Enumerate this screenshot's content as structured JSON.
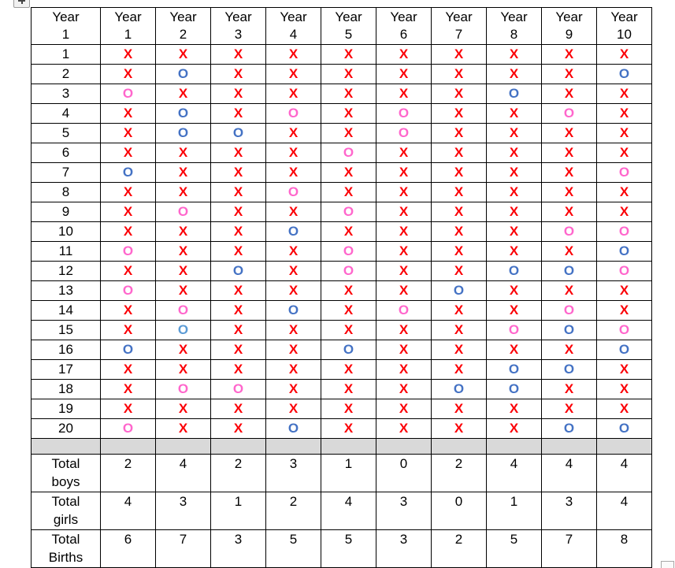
{
  "colors": {
    "mark_red": "#fb0007",
    "boy_blue": "#4472c4",
    "boy_light_blue": "#5b9bd5",
    "girl_pink": "#ff66cc",
    "divider_gray": "#d9d9d9",
    "border_black": "#000000"
  },
  "marks": {
    "X": {
      "glyph": "X",
      "color": "#fb0007"
    },
    "B": {
      "glyph": "O",
      "color": "#4472c4"
    },
    "L": {
      "glyph": "O",
      "color": "#5b9bd5"
    },
    "G": {
      "glyph": "O",
      "color": "#ff66cc"
    }
  },
  "header": {
    "corner": {
      "line1": "Year",
      "line2": "1"
    },
    "years": [
      {
        "line1": "Year",
        "line2": "1"
      },
      {
        "line1": "Year",
        "line2": "2"
      },
      {
        "line1": "Year",
        "line2": "3"
      },
      {
        "line1": "Year",
        "line2": "4"
      },
      {
        "line1": "Year",
        "line2": "5"
      },
      {
        "line1": "Year",
        "line2": "6"
      },
      {
        "line1": "Year",
        "line2": "7"
      },
      {
        "line1": "Year",
        "line2": "8"
      },
      {
        "line1": "Year",
        "line2": "9"
      },
      {
        "line1": "Year",
        "line2": "10"
      }
    ]
  },
  "rows": [
    {
      "label": "1",
      "cells": [
        "X",
        "X",
        "X",
        "X",
        "X",
        "X",
        "X",
        "X",
        "X",
        "X"
      ]
    },
    {
      "label": "2",
      "cells": [
        "X",
        "B",
        "X",
        "X",
        "X",
        "X",
        "X",
        "X",
        "X",
        "B"
      ]
    },
    {
      "label": "3",
      "cells": [
        "G",
        "X",
        "X",
        "X",
        "X",
        "X",
        "X",
        "B",
        "X",
        "X"
      ]
    },
    {
      "label": "4",
      "cells": [
        "X",
        "B",
        "X",
        "G",
        "X",
        "G",
        "X",
        "X",
        "G",
        "X"
      ]
    },
    {
      "label": "5",
      "cells": [
        "X",
        "B",
        "B",
        "X",
        "X",
        "G",
        "X",
        "X",
        "X",
        "X"
      ]
    },
    {
      "label": "6",
      "cells": [
        "X",
        "X",
        "X",
        "X",
        "G",
        "X",
        "X",
        "X",
        "X",
        "X"
      ]
    },
    {
      "label": "7",
      "cells": [
        "B",
        "X",
        "X",
        "X",
        "X",
        "X",
        "X",
        "X",
        "X",
        "G"
      ]
    },
    {
      "label": "8",
      "cells": [
        "X",
        "X",
        "X",
        "G",
        "X",
        "X",
        "X",
        "X",
        "X",
        "X"
      ]
    },
    {
      "label": "9",
      "cells": [
        "X",
        "G",
        "X",
        "X",
        "G",
        "X",
        "X",
        "X",
        "X",
        "X"
      ]
    },
    {
      "label": "10",
      "cells": [
        "X",
        "X",
        "X",
        "B",
        "X",
        "X",
        "X",
        "X",
        "G",
        "G"
      ]
    },
    {
      "label": "11",
      "cells": [
        "G",
        "X",
        "X",
        "X",
        "G",
        "X",
        "X",
        "X",
        "X",
        "B"
      ]
    },
    {
      "label": "12",
      "cells": [
        "X",
        "X",
        "B",
        "X",
        "G",
        "X",
        "X",
        "B",
        "B",
        "G"
      ]
    },
    {
      "label": "13",
      "cells": [
        "G",
        "X",
        "X",
        "X",
        "X",
        "X",
        "B",
        "X",
        "X",
        "X"
      ]
    },
    {
      "label": "14",
      "cells": [
        "X",
        "G",
        "X",
        "B",
        "X",
        "G",
        "X",
        "X",
        "G",
        "X"
      ]
    },
    {
      "label": "15",
      "cells": [
        "X",
        "L",
        "X",
        "X",
        "X",
        "X",
        "X",
        "G",
        "B",
        "G"
      ]
    },
    {
      "label": "16",
      "cells": [
        "B",
        "X",
        "X",
        "X",
        "B",
        "X",
        "X",
        "X",
        "X",
        "B"
      ]
    },
    {
      "label": "17",
      "cells": [
        "X",
        "X",
        "X",
        "X",
        "X",
        "X",
        "X",
        "B",
        "B",
        "X"
      ]
    },
    {
      "label": "18",
      "cells": [
        "X",
        "G",
        "G",
        "X",
        "X",
        "X",
        "B",
        "B",
        "X",
        "X"
      ]
    },
    {
      "label": "19",
      "cells": [
        "X",
        "X",
        "X",
        "X",
        "X",
        "X",
        "X",
        "X",
        "X",
        "X"
      ]
    },
    {
      "label": "20",
      "cells": [
        "G",
        "X",
        "X",
        "B",
        "X",
        "X",
        "X",
        "X",
        "B",
        "B"
      ]
    }
  ],
  "totals": [
    {
      "label_line1": "Total",
      "label_line2": "boys",
      "values": [
        2,
        4,
        2,
        3,
        1,
        0,
        2,
        4,
        4,
        4
      ]
    },
    {
      "label_line1": "Total",
      "label_line2": "girls",
      "values": [
        4,
        3,
        1,
        2,
        4,
        3,
        0,
        1,
        3,
        4
      ]
    },
    {
      "label_line1": "Total",
      "label_line2": "Births",
      "values": [
        6,
        7,
        3,
        5,
        5,
        3,
        2,
        5,
        7,
        8
      ]
    }
  ]
}
